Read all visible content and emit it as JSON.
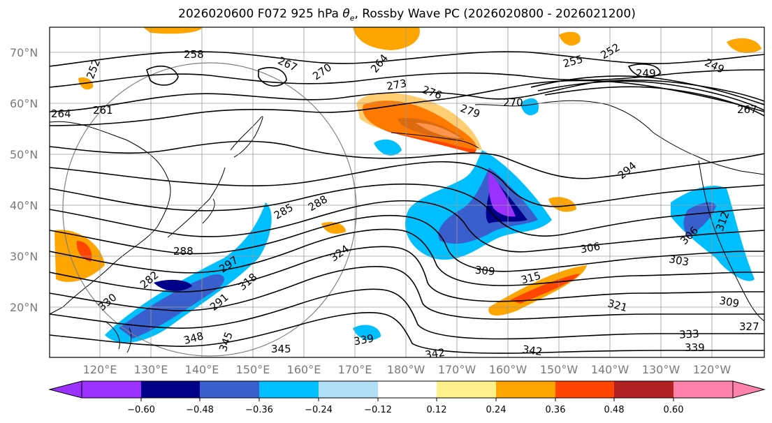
{
  "title_parts": {
    "prefix": "2026020600 F072 925 hPa ",
    "theta": "θ",
    "sub": "e",
    "suffix": ", Rossby Wave PC (2026020800 - 2026021200)"
  },
  "map": {
    "lat_labels": [
      "70°N",
      "60°N",
      "50°N",
      "40°N",
      "30°N",
      "20°N"
    ],
    "lon_labels": [
      "120°E",
      "130°E",
      "140°E",
      "150°E",
      "160°E",
      "170°E",
      "180°W",
      "170°W",
      "160°W",
      "150°W",
      "140°W",
      "130°W",
      "120°W"
    ],
    "contour_labels": [
      "258",
      "252",
      "264",
      "261",
      "267",
      "270",
      "264",
      "273",
      "276",
      "279",
      "270",
      "255",
      "252",
      "249",
      "249",
      "267",
      "294",
      "285",
      "288",
      "288",
      "297",
      "282",
      "291",
      "324",
      "306",
      "309",
      "315",
      "303",
      "306",
      "312",
      "321",
      "309",
      "327",
      "333",
      "339",
      "342",
      "342",
      "339",
      "345",
      "345",
      "348",
      "330",
      "318"
    ]
  },
  "colorbar": {
    "ticks": [
      "−0.60",
      "−0.48",
      "−0.36",
      "−0.24",
      "−0.12",
      "0.12",
      "0.24",
      "0.36",
      "0.48",
      "0.60"
    ],
    "colors": [
      "#9b30ff",
      "#00008b",
      "#3a5fcd",
      "#00bfff",
      "#b0e0f8",
      "#ffffff",
      "#fff08a",
      "#ffa500",
      "#ff4500",
      "#b22222",
      "#ff82ab"
    ]
  }
}
